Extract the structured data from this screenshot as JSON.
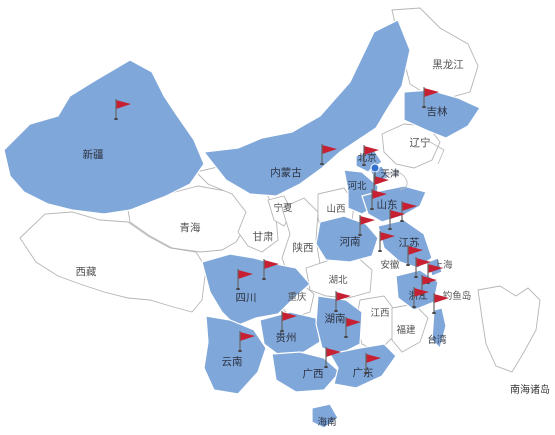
{
  "map": {
    "highlight_color": "#7fa7d9",
    "flag_color": "#c62032",
    "labels": {
      "xinjiang": "新疆",
      "xizang": "西藏",
      "qinghai": "青海",
      "gansu": "甘肃",
      "ningxia": "宁夏",
      "neimenggu": "内蒙古",
      "heilongjiang": "黑龙江",
      "jilin": "吉林",
      "liaoning": "辽宁",
      "beijing": "北京",
      "tianjin": "天津",
      "hebei": "河北",
      "shanxi": "山西",
      "shandong": "山东",
      "shaanxi": "陕西",
      "henan": "河南",
      "jiangsu": "江苏",
      "anhui": "安徽",
      "shanghai": "上海",
      "hubei": "湖北",
      "sichuan": "四川",
      "chongqing": "重庆",
      "zhejiang": "浙江",
      "diaoyudao": "钓鱼岛",
      "hunan": "湖南",
      "jiangxi": "江西",
      "fujian": "福建",
      "taiwan": "台湾",
      "guizhou": "贵州",
      "yunnan": "云南",
      "guangxi": "广西",
      "guangdong": "广东",
      "hainan": "海南",
      "nanhai": "南海诸岛"
    }
  }
}
